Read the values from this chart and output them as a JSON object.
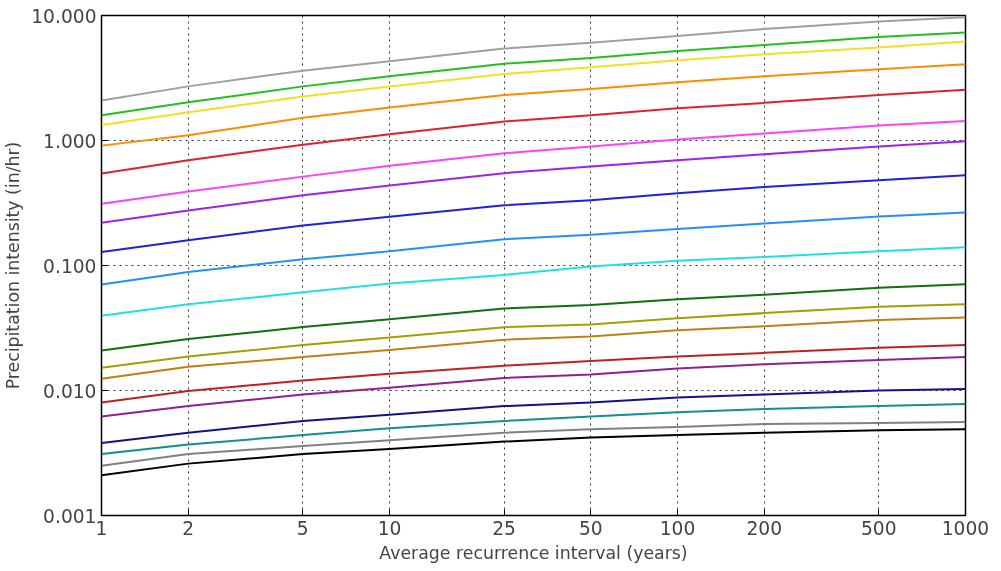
{
  "chart_data": {
    "type": "line",
    "xlabel": "Average recurrence interval (years)",
    "ylabel": "Precipitation intensity (in/hr)",
    "log": "xy",
    "grid": true,
    "marker": "none",
    "line_style": "solid",
    "x": [
      1,
      2,
      5,
      10,
      25,
      50,
      100,
      200,
      500,
      1000
    ],
    "xlim": [
      1,
      1000
    ],
    "xticks": [
      1,
      2,
      5,
      10,
      25,
      50,
      100,
      200,
      500,
      1000
    ],
    "ylim": [
      0.001,
      10
    ],
    "yticks": [
      {
        "value": 0.001,
        "label": "0.001"
      },
      {
        "value": 0.01,
        "label": "0.010"
      },
      {
        "value": 0.1,
        "label": "0.100"
      },
      {
        "value": 1,
        "label": "1.000"
      },
      {
        "value": 10,
        "label": "10.000"
      }
    ],
    "series": [
      {
        "color": "#a0a0a0",
        "values": [
          2.09,
          2.71,
          3.62,
          4.3,
          5.44,
          6.04,
          6.85,
          7.79,
          8.97,
          9.68
        ]
      },
      {
        "color": "#20c020",
        "values": [
          1.59,
          2.02,
          2.71,
          3.27,
          4.11,
          4.58,
          5.21,
          5.81,
          6.72,
          7.31
        ]
      },
      {
        "color": "#f0e020",
        "values": [
          1.33,
          1.68,
          2.25,
          2.7,
          3.4,
          3.85,
          4.38,
          4.89,
          5.55,
          6.19
        ]
      },
      {
        "color": "#ff8c00",
        "values": [
          0.91,
          1.1,
          1.52,
          1.84,
          2.31,
          2.58,
          2.93,
          3.27,
          3.71,
          4.08
        ]
      },
      {
        "color": "#e02030",
        "values": [
          0.544,
          0.695,
          0.926,
          1.12,
          1.42,
          1.59,
          1.81,
          2.0,
          2.31,
          2.55
        ]
      },
      {
        "color": "#ff40ff",
        "values": [
          0.312,
          0.391,
          0.514,
          0.627,
          0.79,
          0.897,
          1.02,
          1.14,
          1.32,
          1.43
        ]
      },
      {
        "color": "#a020f0",
        "values": [
          0.22,
          0.275,
          0.364,
          0.436,
          0.548,
          0.619,
          0.695,
          0.775,
          0.897,
          0.987
        ]
      },
      {
        "color": "#2020e0",
        "values": [
          0.128,
          0.159,
          0.209,
          0.245,
          0.303,
          0.333,
          0.378,
          0.424,
          0.48,
          0.528
        ]
      },
      {
        "color": "#2090ff",
        "values": [
          0.0704,
          0.0886,
          0.112,
          0.13,
          0.162,
          0.176,
          0.196,
          0.217,
          0.247,
          0.266
        ]
      },
      {
        "color": "#20e0e0",
        "values": [
          0.0396,
          0.0489,
          0.061,
          0.0718,
          0.0841,
          0.0982,
          0.109,
          0.117,
          0.13,
          0.14
        ]
      },
      {
        "color": "#107010",
        "values": [
          0.0209,
          0.0258,
          0.0322,
          0.0371,
          0.0453,
          0.0482,
          0.0538,
          0.0584,
          0.0664,
          0.0708
        ]
      },
      {
        "color": "#a0a000",
        "values": [
          0.0152,
          0.0187,
          0.0231,
          0.0265,
          0.0321,
          0.0337,
          0.0378,
          0.0416,
          0.0467,
          0.0489
        ]
      },
      {
        "color": "#c08010",
        "values": [
          0.0124,
          0.0155,
          0.0185,
          0.0211,
          0.0255,
          0.0271,
          0.0303,
          0.0327,
          0.0366,
          0.0383
        ]
      },
      {
        "color": "#c02020",
        "values": [
          0.008,
          0.0099,
          0.012,
          0.0136,
          0.0158,
          0.0172,
          0.0187,
          0.02,
          0.022,
          0.0231
        ]
      },
      {
        "color": "#902090",
        "values": [
          0.0062,
          0.0075,
          0.0093,
          0.0105,
          0.0126,
          0.0134,
          0.015,
          0.0162,
          0.0175,
          0.0185
        ]
      },
      {
        "color": "#101090",
        "values": [
          0.0038,
          0.0046,
          0.0057,
          0.0064,
          0.0075,
          0.008,
          0.0088,
          0.0093,
          0.01,
          0.0103
        ]
      },
      {
        "color": "#109090",
        "values": [
          0.0031,
          0.0037,
          0.0044,
          0.005,
          0.0057,
          0.0062,
          0.0067,
          0.0071,
          0.0075,
          0.0078
        ]
      },
      {
        "color": "#808080",
        "values": [
          0.0025,
          0.0031,
          0.0036,
          0.004,
          0.0046,
          0.0049,
          0.0051,
          0.0054,
          0.0055,
          0.0056
        ]
      },
      {
        "color": "#000000",
        "values": [
          0.0021,
          0.0026,
          0.0031,
          0.0034,
          0.0039,
          0.0042,
          0.0044,
          0.0046,
          0.0048,
          0.0049
        ]
      }
    ]
  }
}
